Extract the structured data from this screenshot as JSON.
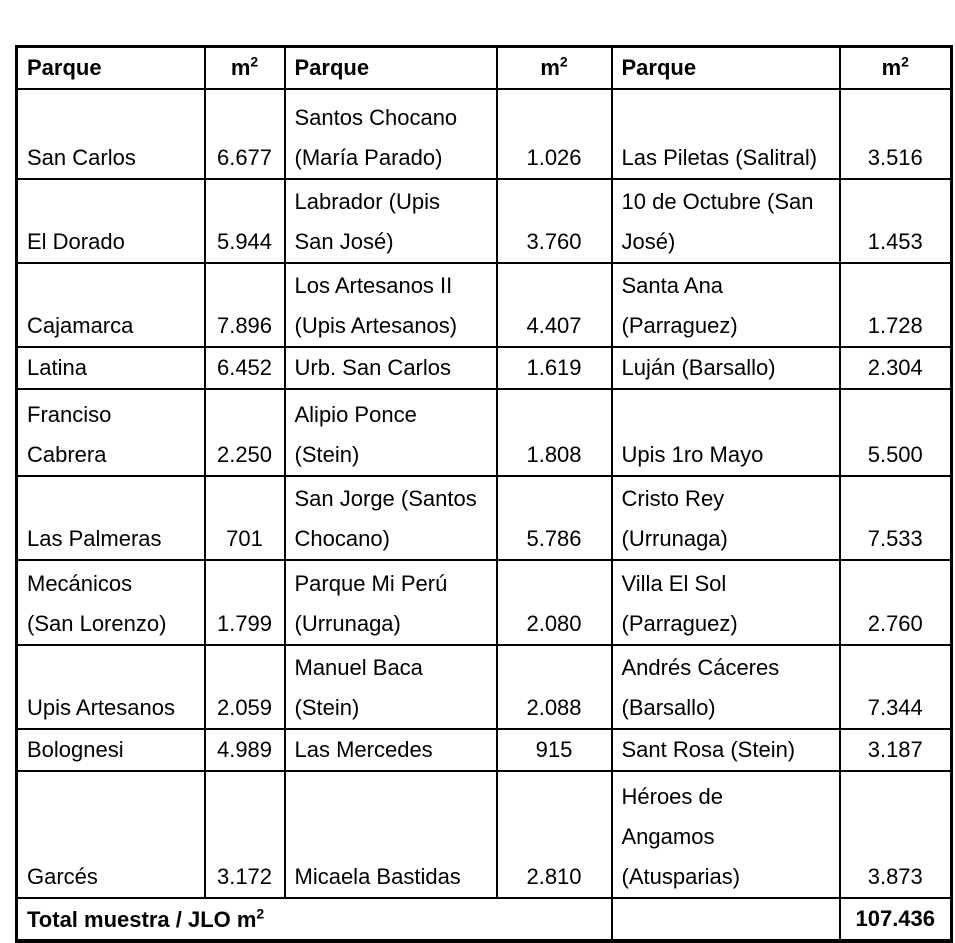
{
  "table": {
    "header": {
      "park_label": "Parque",
      "area_base": "m",
      "area_sup": "2"
    },
    "rows": [
      [
        "San Carlos",
        "6.677",
        "Santos Chocano\n(María Parado)",
        "1.026",
        "Las Piletas (Salitral)",
        "3.516"
      ],
      [
        "El Dorado",
        "5.944",
        "Labrador (Upis\nSan José)",
        "3.760",
        "10 de Octubre (San\nJosé)",
        "1.453"
      ],
      [
        "Cajamarca",
        "7.896",
        "Los Artesanos II\n(Upis Artesanos)",
        "4.407",
        "Santa Ana\n(Parraguez)",
        "1.728"
      ],
      [
        "Latina",
        "6.452",
        "Urb. San Carlos",
        "1.619",
        "Luján (Barsallo)",
        "2.304"
      ],
      [
        "Franciso\nCabrera",
        "2.250",
        "Alipio Ponce\n(Stein)",
        "1.808",
        "Upis 1ro Mayo",
        "5.500"
      ],
      [
        "Las Palmeras",
        "701",
        "San Jorge (Santos\nChocano)",
        "5.786",
        "Cristo Rey\n(Urrunaga)",
        "7.533"
      ],
      [
        "Mecánicos\n(San Lorenzo)",
        "1.799",
        "Parque Mi Perú\n(Urrunaga)",
        "2.080",
        "Villa El Sol\n(Parraguez)",
        "2.760"
      ],
      [
        "Upis Artesanos",
        "2.059",
        "Manuel Baca\n(Stein)",
        "2.088",
        "Andrés Cáceres\n(Barsallo)",
        "7.344"
      ],
      [
        "Bolognesi",
        "4.989",
        "Las Mercedes",
        "915",
        "Sant Rosa (Stein)",
        "3.187"
      ],
      [
        "Garcés",
        "3.172",
        "Micaela Bastidas",
        "2.810",
        "Héroes de\nAngamos\n(Atusparias)",
        "3.873"
      ]
    ],
    "footer": {
      "total_label_base": "Total muestra / JLO m",
      "total_label_sup": "2",
      "total_value": "107.436"
    }
  }
}
